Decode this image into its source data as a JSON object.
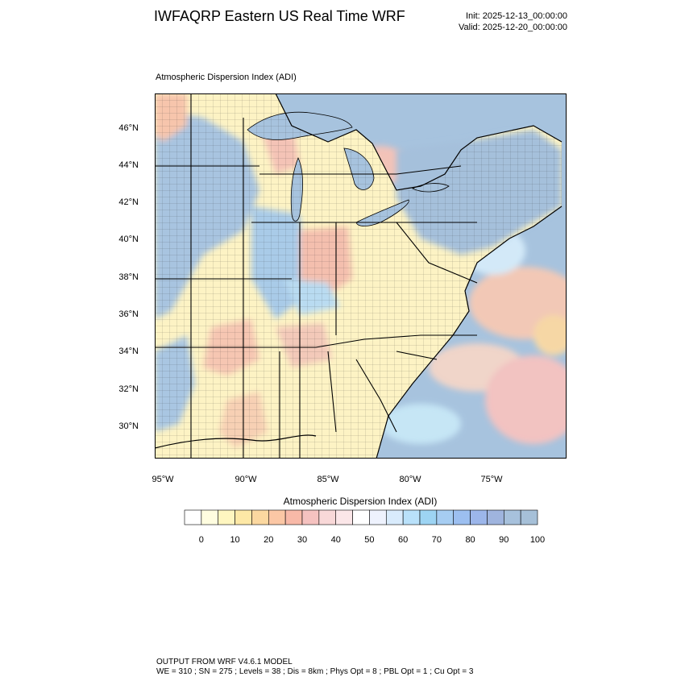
{
  "header": {
    "title": "IWFAQRP Eastern US Real Time WRF",
    "init": "Init: 2025-12-13_00:00:00",
    "valid": "Valid: 2025-12-20_00:00:00"
  },
  "plot": {
    "title": "Atmospheric Dispersion Index   (ADI)",
    "lat_labels": [
      "46°N",
      "44°N",
      "42°N",
      "40°N",
      "38°N",
      "36°N",
      "34°N",
      "32°N",
      "30°N"
    ],
    "lon_labels": [
      "95°W",
      "90°W",
      "85°W",
      "80°W",
      "75°W"
    ]
  },
  "colors": {
    "land_low": "#fdf6b8",
    "land_mid": "#f6c8b8",
    "land_high": "#a8c4e0",
    "ocean": "#a7c3de",
    "ocean_warm": "#f5d7ca"
  },
  "colorbar": {
    "title": "Atmospheric Dispersion Index  (ADI)",
    "ticks": [
      "0",
      "10",
      "20",
      "30",
      "40",
      "50",
      "60",
      "70",
      "80",
      "90",
      "100"
    ],
    "colors": [
      "#ffffff",
      "#fffde0",
      "#fff6c0",
      "#fde8a6",
      "#fbd8a0",
      "#fbc7a5",
      "#f8b9a8",
      "#f5c2c0",
      "#f8d8d8",
      "#fbe6e8",
      "#ffffff",
      "#eef2fd",
      "#d9ebfc",
      "#b9e1fa",
      "#9dd4f3",
      "#a6cdf2",
      "#9cbff0",
      "#9cb6ea",
      "#9fb4de",
      "#a7c1dc",
      "#a6c0d8"
    ]
  },
  "footer": {
    "line1": "OUTPUT FROM WRF V4.6.1 MODEL",
    "line2": "WE = 310 ; SN = 275 ; Levels = 38 ; Dis = 8km ; Phys Opt = 8 ; PBL Opt = 1 ; Cu Opt = 3"
  }
}
